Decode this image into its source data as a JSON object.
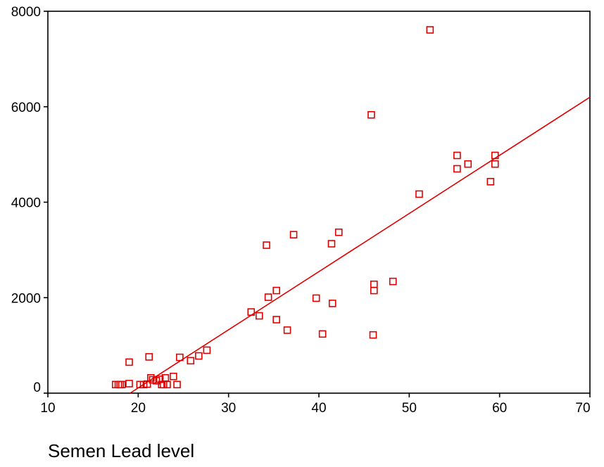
{
  "chart_data": {
    "type": "scatter",
    "xlabel": "Semen Lead level",
    "ylabel": "",
    "xlim": [
      10,
      70
    ],
    "ylim": [
      0,
      8000
    ],
    "x_ticks": [
      "10",
      "20",
      "30",
      "40",
      "50",
      "60",
      "70"
    ],
    "y_ticks": [
      "0",
      "2000",
      "4000",
      "6000",
      "8000"
    ],
    "grid": false,
    "legend": "none",
    "colors": {
      "points": "#e00000",
      "fit_line": "#e00000",
      "axes": "#000000"
    },
    "fit_line": {
      "x": [
        19.1,
        70
      ],
      "y": [
        0,
        6200
      ]
    },
    "series": [
      {
        "marker": "open-square",
        "points": [
          [
            17.5,
            180
          ],
          [
            17.8,
            180
          ],
          [
            18.0,
            180
          ],
          [
            18.2,
            180
          ],
          [
            19.0,
            200
          ],
          [
            19.0,
            650
          ],
          [
            20.2,
            180
          ],
          [
            20.6,
            180
          ],
          [
            21.0,
            190
          ],
          [
            21.2,
            760
          ],
          [
            21.4,
            320
          ],
          [
            21.6,
            280
          ],
          [
            22.0,
            260
          ],
          [
            22.4,
            290
          ],
          [
            22.6,
            180
          ],
          [
            22.8,
            180
          ],
          [
            23.0,
            320
          ],
          [
            23.2,
            180
          ],
          [
            23.9,
            350
          ],
          [
            24.3,
            180
          ],
          [
            24.6,
            750
          ],
          [
            25.8,
            680
          ],
          [
            26.7,
            780
          ],
          [
            27.6,
            900
          ],
          [
            32.5,
            1700
          ],
          [
            33.4,
            1620
          ],
          [
            34.2,
            3100
          ],
          [
            34.4,
            2010
          ],
          [
            35.3,
            2150
          ],
          [
            35.3,
            1540
          ],
          [
            36.5,
            1320
          ],
          [
            37.2,
            3320
          ],
          [
            39.7,
            1990
          ],
          [
            40.4,
            1240
          ],
          [
            41.4,
            3130
          ],
          [
            41.5,
            1880
          ],
          [
            42.2,
            3370
          ],
          [
            45.8,
            5830
          ],
          [
            46.0,
            1220
          ],
          [
            46.1,
            2280
          ],
          [
            46.1,
            2150
          ],
          [
            48.2,
            2340
          ],
          [
            51.1,
            4170
          ],
          [
            52.3,
            7610
          ],
          [
            55.3,
            4980
          ],
          [
            55.3,
            4700
          ],
          [
            56.5,
            4800
          ],
          [
            59.0,
            4430
          ],
          [
            59.5,
            4980
          ],
          [
            59.5,
            4800
          ]
        ]
      }
    ]
  }
}
